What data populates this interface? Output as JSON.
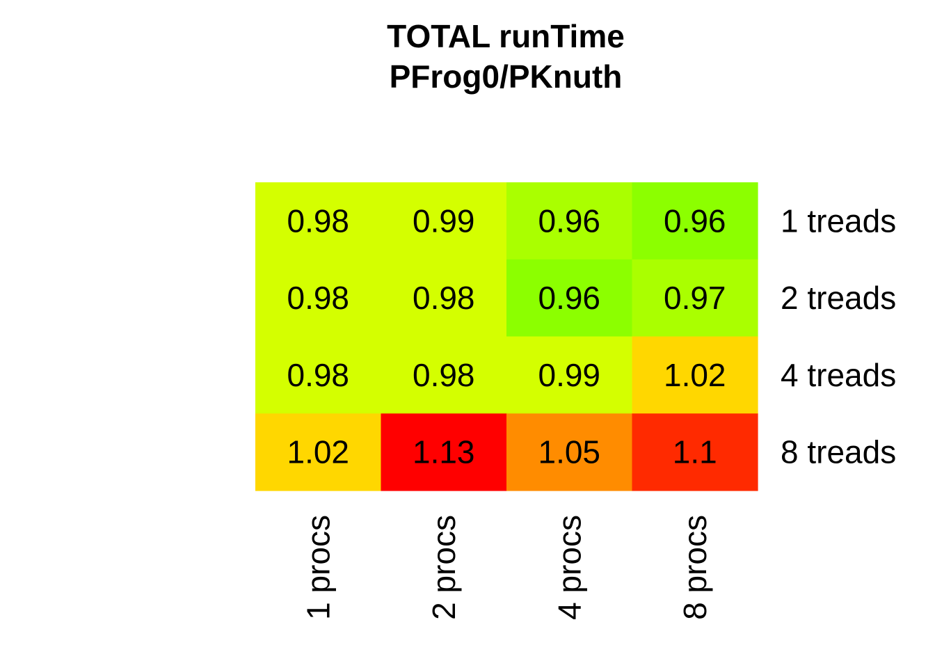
{
  "chart_data": {
    "type": "heatmap",
    "title": "TOTAL  runTime",
    "subtitle": "PFrog0/PKnuth",
    "x_categories": [
      "1 procs",
      "2 procs",
      "4 procs",
      "8 procs"
    ],
    "y_categories": [
      "1 treads",
      "2 treads",
      "4 treads",
      "8 treads"
    ],
    "values": [
      [
        0.98,
        0.99,
        0.96,
        0.96
      ],
      [
        0.98,
        0.98,
        0.96,
        0.97
      ],
      [
        0.98,
        0.98,
        0.99,
        1.02
      ],
      [
        1.02,
        1.13,
        1.05,
        1.1
      ]
    ],
    "cell_labels": [
      [
        "0.98",
        "0.99",
        "0.96",
        "0.96"
      ],
      [
        "0.98",
        "0.98",
        "0.96",
        "0.97"
      ],
      [
        "0.98",
        "0.98",
        "0.99",
        "1.02"
      ],
      [
        "1.02",
        "1.13",
        "1.05",
        "1.1"
      ]
    ],
    "cell_colors": [
      [
        "#d4ff00",
        "#d4ff00",
        "#aaff00",
        "#8cff00"
      ],
      [
        "#d4ff00",
        "#d4ff00",
        "#8cff00",
        "#aaff00"
      ],
      [
        "#d4ff00",
        "#d4ff00",
        "#d4ff00",
        "#ffd700"
      ],
      [
        "#ffd700",
        "#ff0000",
        "#ff8c00",
        "#ff2a00"
      ]
    ],
    "xlabel": "",
    "ylabel": "",
    "grid": false,
    "legend": "none"
  }
}
